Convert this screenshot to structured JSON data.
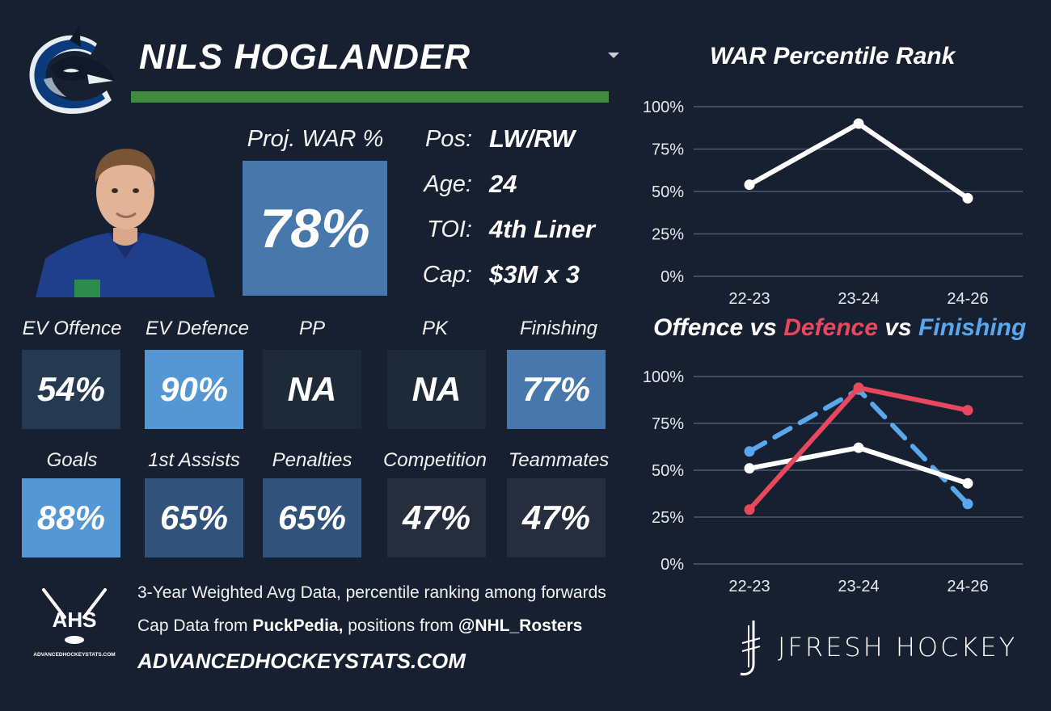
{
  "player": {
    "name": "NILS HOGLANDER",
    "proj_war_label": "Proj. WAR %",
    "proj_war_value": "78%"
  },
  "info": [
    {
      "label": "Pos:",
      "value": "LW/RW"
    },
    {
      "label": "Age:",
      "value": "24"
    },
    {
      "label": "TOI:",
      "value": "4th Liner"
    },
    {
      "label": "Cap:",
      "value": "$3M x 3"
    }
  ],
  "stats_row1": [
    {
      "label": "EV Offence",
      "value": "54%",
      "color": "#253950"
    },
    {
      "label": "EV Defence",
      "value": "90%",
      "color": "#5597d3"
    },
    {
      "label": "PP",
      "value": "NA",
      "color": "#1f2a39"
    },
    {
      "label": "PK",
      "value": "NA",
      "color": "#1f2a39"
    },
    {
      "label": "Finishing",
      "value": "77%",
      "color": "#4877ab"
    }
  ],
  "stats_row2": [
    {
      "label": "Goals",
      "value": "88%",
      "color": "#5597d3"
    },
    {
      "label": "1st Assists",
      "value": "65%",
      "color": "#31527a"
    },
    {
      "label": "Penalties",
      "value": "65%",
      "color": "#31527a"
    },
    {
      "label": "Competition",
      "value": "47%",
      "color": "#262e3e"
    },
    {
      "label": "Teammates",
      "value": "47%",
      "color": "#262e3e"
    }
  ],
  "footer": {
    "line1": "3-Year Weighted Avg Data, percentile ranking among forwards",
    "line2_prefix": "Cap Data from ",
    "line2_source1": "PuckPedia,",
    "line2_middle": " positions from ",
    "line2_source2": "@NHL_Rosters",
    "site": "ADVANCEDHOCKEYSTATS.COM",
    "ahs_logo_text": "AHS",
    "ahs_logo_sub": "ADVANCEDHOCKEYSTATS.COM",
    "brand": "JFRESH HOCKEY"
  },
  "chart_data": [
    {
      "type": "line",
      "title": "WAR Percentile Rank",
      "categories": [
        "22-23",
        "23-24",
        "24-26"
      ],
      "series": [
        {
          "values": [
            54,
            90,
            46
          ],
          "color": "#ffffff"
        }
      ],
      "ylim": [
        0,
        100
      ],
      "yticks": [
        "0%",
        "25%",
        "50%",
        "75%",
        "100%"
      ],
      "grid": true
    },
    {
      "type": "line",
      "title_parts": [
        {
          "text": "Offence",
          "color": "#ffffff"
        },
        {
          "text": " vs ",
          "color": "#ffffff"
        },
        {
          "text": "Defence",
          "color": "#e8485e"
        },
        {
          "text": " vs ",
          "color": "#ffffff"
        },
        {
          "text": "Finishing",
          "color": "#5aa7ec"
        }
      ],
      "categories": [
        "22-23",
        "23-24",
        "24-26"
      ],
      "series": [
        {
          "values": [
            60,
            93,
            32
          ],
          "color": "#5aa7ec",
          "dashed": true
        },
        {
          "values": [
            51,
            62,
            43
          ],
          "color": "#ffffff"
        },
        {
          "values": [
            29,
            94,
            82
          ],
          "color": "#e8485e"
        }
      ],
      "ylim": [
        0,
        100
      ],
      "yticks": [
        "0%",
        "25%",
        "50%",
        "75%",
        "100%"
      ],
      "grid": true
    }
  ]
}
